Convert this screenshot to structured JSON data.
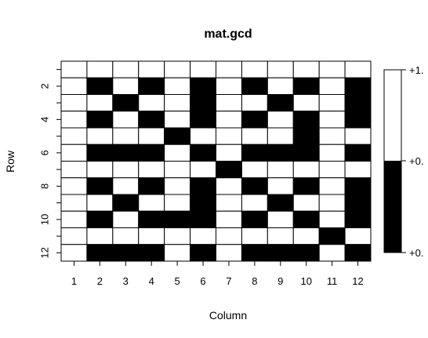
{
  "chart_data": {
    "type": "heatmap",
    "title": "mat.gcd",
    "xlabel": "Column",
    "ylabel": "Row",
    "x_ticks": [
      "1",
      "2",
      "3",
      "4",
      "5",
      "6",
      "7",
      "8",
      "9",
      "10",
      "11",
      "12"
    ],
    "y_ticks": [
      "2",
      "4",
      "6",
      "8",
      "10",
      "12"
    ],
    "rows": 12,
    "cols": 12,
    "matrix": [
      [
        1,
        1,
        1,
        1,
        1,
        1,
        1,
        1,
        1,
        1,
        1,
        1
      ],
      [
        1,
        0,
        1,
        0,
        1,
        0,
        1,
        0,
        1,
        0,
        1,
        0
      ],
      [
        1,
        1,
        0,
        1,
        1,
        0,
        1,
        1,
        0,
        1,
        1,
        0
      ],
      [
        1,
        0,
        1,
        0,
        1,
        0,
        1,
        0,
        1,
        0,
        1,
        0
      ],
      [
        1,
        1,
        1,
        1,
        0,
        1,
        1,
        1,
        1,
        0,
        1,
        1
      ],
      [
        1,
        0,
        0,
        0,
        1,
        0,
        1,
        0,
        0,
        0,
        1,
        0
      ],
      [
        1,
        1,
        1,
        1,
        1,
        1,
        0,
        1,
        1,
        1,
        1,
        1
      ],
      [
        1,
        0,
        1,
        0,
        1,
        0,
        1,
        0,
        1,
        0,
        1,
        0
      ],
      [
        1,
        1,
        0,
        1,
        1,
        0,
        1,
        1,
        0,
        1,
        1,
        0
      ],
      [
        1,
        0,
        1,
        0,
        0,
        0,
        1,
        0,
        1,
        0,
        1,
        0
      ],
      [
        1,
        1,
        1,
        1,
        1,
        1,
        1,
        1,
        1,
        1,
        0,
        1
      ],
      [
        1,
        0,
        0,
        0,
        1,
        0,
        1,
        0,
        0,
        0,
        1,
        0
      ]
    ],
    "legend": {
      "labels": [
        "+1.",
        "+0.",
        "+0."
      ],
      "colors": [
        "#ffffff",
        "#000000"
      ],
      "placement": "right"
    },
    "grid": true
  }
}
